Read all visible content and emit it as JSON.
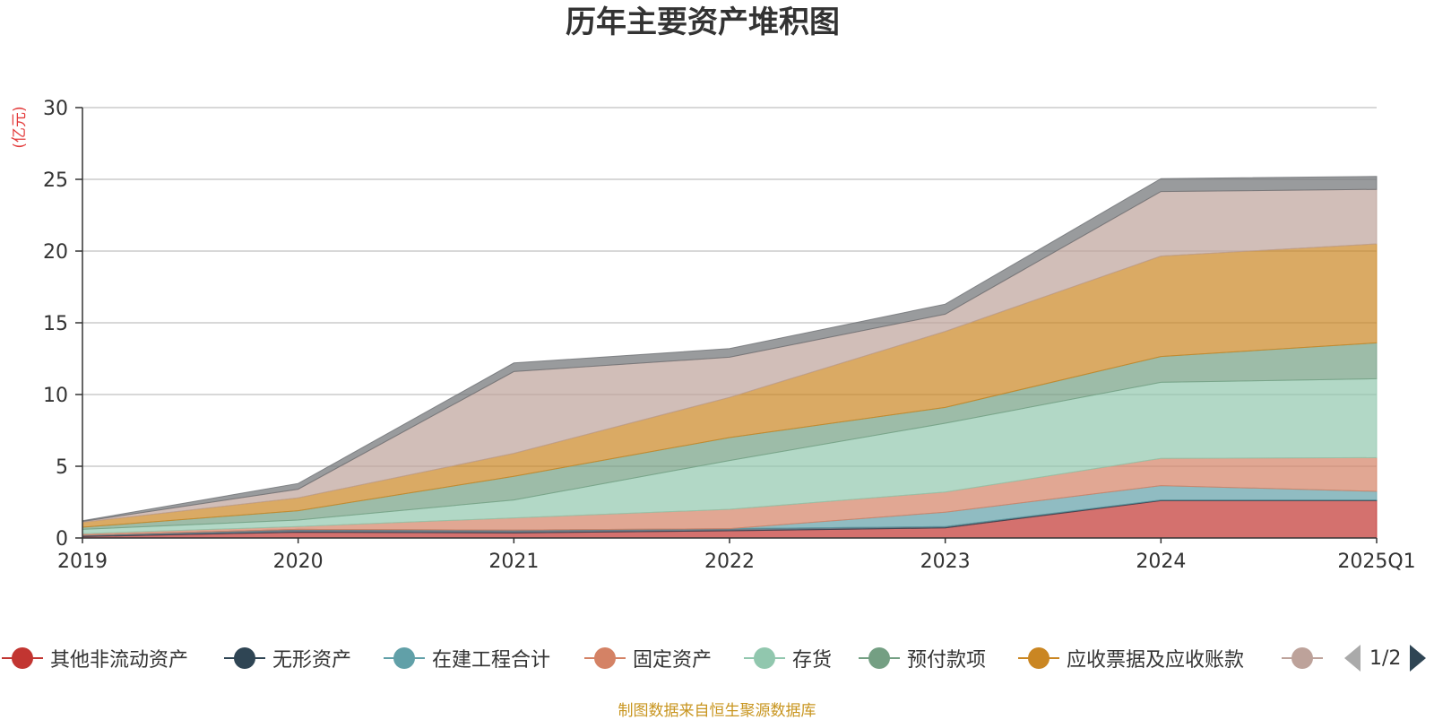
{
  "chart_data": {
    "type": "area",
    "stacked": true,
    "title": "历年主要资产堆积图",
    "ylabel": "(亿元)",
    "xlabel": "",
    "x": [
      "2019",
      "2020",
      "2021",
      "2022",
      "2023",
      "2024",
      "2025Q1"
    ],
    "ylim": [
      0,
      30
    ],
    "yticks": [
      0,
      5,
      10,
      15,
      20,
      25,
      30
    ],
    "grid": true,
    "legend_position": "bottom",
    "series": [
      {
        "name": "其他非流动资产",
        "color": "#c23531",
        "values": [
          0.1,
          0.4,
          0.35,
          0.5,
          0.7,
          2.6,
          2.6
        ]
      },
      {
        "name": "无形资产",
        "color": "#2f4554",
        "values": [
          0.1,
          0.2,
          0.2,
          0.15,
          0.1,
          0.05,
          0.05
        ]
      },
      {
        "name": "在建工程合计",
        "color": "#61a0a8",
        "values": [
          0.0,
          0.0,
          0.0,
          0.0,
          1.0,
          1.0,
          0.6
        ]
      },
      {
        "name": "固定资产",
        "color": "#d48265",
        "values": [
          0.1,
          0.2,
          0.85,
          1.35,
          1.4,
          1.9,
          2.35
        ]
      },
      {
        "name": "存货",
        "color": "#91c7ae",
        "values": [
          0.3,
          0.45,
          1.25,
          3.4,
          4.8,
          5.3,
          5.5
        ]
      },
      {
        "name": "预付款项",
        "color": "#749f83",
        "values": [
          0.15,
          0.65,
          1.65,
          1.6,
          1.1,
          1.8,
          2.5
        ]
      },
      {
        "name": "应收票据及应收账款",
        "color": "#ca8622",
        "values": [
          0.35,
          0.9,
          1.6,
          2.8,
          5.3,
          7.0,
          6.9
        ]
      },
      {
        "name": "",
        "color": "#bda29a",
        "values": [
          0.05,
          0.6,
          5.7,
          2.8,
          1.2,
          4.5,
          3.8
        ]
      },
      {
        "color": "#6e7074",
        "values": [
          0.05,
          0.4,
          0.6,
          0.6,
          0.7,
          0.9,
          0.9
        ]
      }
    ]
  },
  "legend": {
    "page": "1/2"
  },
  "footer": {
    "source": "制图数据来自恒生聚源数据库"
  }
}
